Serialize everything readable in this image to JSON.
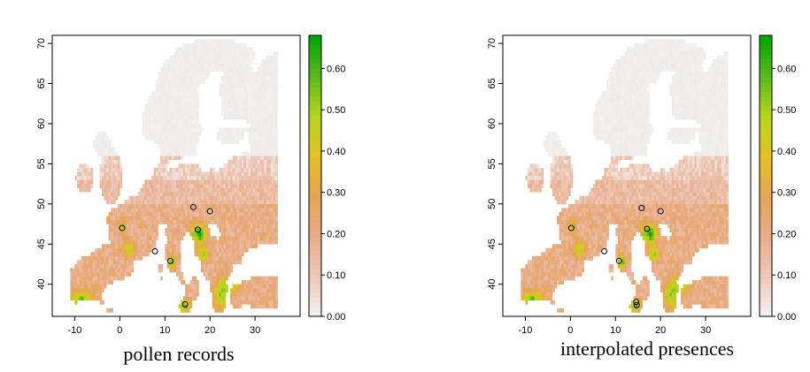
{
  "chart_data": [
    {
      "type": "heatmap",
      "caption": "pollen records",
      "xlim": [
        -15,
        40
      ],
      "ylim": [
        36,
        71
      ],
      "x_ticks": [
        -10,
        0,
        10,
        20,
        30
      ],
      "y_ticks": [
        40,
        45,
        50,
        55,
        60,
        65,
        70
      ],
      "colorbar": {
        "range": [
          0,
          0.68
        ],
        "ticks": [
          0.0,
          0.1,
          0.2,
          0.3,
          0.4,
          0.5,
          0.6
        ],
        "tick_labels": [
          "0.00",
          "0.10",
          "0.20",
          "0.30",
          "0.40",
          "0.50",
          "0.60"
        ],
        "colors": [
          "#f2f2f2",
          "#eec9b8",
          "#e8ad8a",
          "#e6a552",
          "#e2c224",
          "#b6d61c",
          "#58b81a",
          "#00a600"
        ]
      },
      "points": [
        {
          "lon": 0.5,
          "lat": 47.0
        },
        {
          "lon": 7.8,
          "lat": 44.1
        },
        {
          "lon": 11.2,
          "lat": 42.9
        },
        {
          "lon": 14.5,
          "lat": 37.5
        },
        {
          "lon": 16.3,
          "lat": 49.6
        },
        {
          "lon": 17.3,
          "lat": 46.8
        },
        {
          "lon": 20.0,
          "lat": 49.1
        }
      ]
    },
    {
      "type": "heatmap",
      "caption": "interpolated presences",
      "xlim": [
        -15,
        40
      ],
      "ylim": [
        36,
        71
      ],
      "x_ticks": [
        -10,
        0,
        10,
        20,
        30
      ],
      "y_ticks": [
        40,
        45,
        50,
        55,
        60,
        65,
        70
      ],
      "colorbar": {
        "range": [
          0,
          0.68
        ],
        "ticks": [
          0.0,
          0.1,
          0.2,
          0.3,
          0.4,
          0.5,
          0.6
        ],
        "tick_labels": [
          "0.00",
          "0.10",
          "0.20",
          "0.30",
          "0.40",
          "0.50",
          "0.60"
        ],
        "colors": [
          "#f2f2f2",
          "#eec9b8",
          "#e8ad8a",
          "#e6a552",
          "#e2c224",
          "#b6d61c",
          "#58b81a",
          "#00a600"
        ]
      },
      "points": [
        {
          "lon": 0.2,
          "lat": 47.0
        },
        {
          "lon": 7.5,
          "lat": 44.1
        },
        {
          "lon": 10.8,
          "lat": 42.9
        },
        {
          "lon": 14.6,
          "lat": 37.8
        },
        {
          "lon": 14.7,
          "lat": 37.4
        },
        {
          "lon": 15.8,
          "lat": 49.5
        },
        {
          "lon": 17.0,
          "lat": 46.9
        },
        {
          "lon": 20.0,
          "lat": 49.1
        }
      ]
    }
  ]
}
